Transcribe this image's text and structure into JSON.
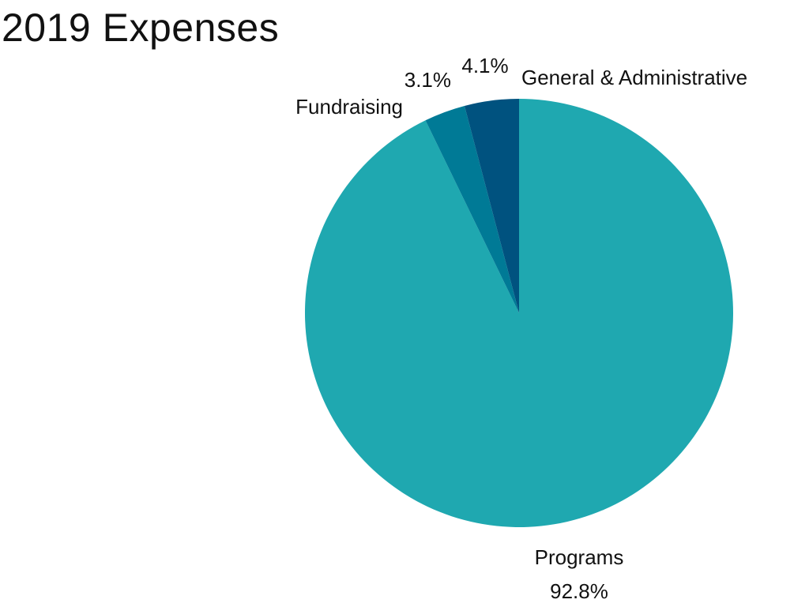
{
  "chart_data": {
    "type": "pie",
    "title": "2019 Expenses",
    "start_angle_deg": 0,
    "direction": "clockwise",
    "slices": [
      {
        "label": "Programs",
        "value": 92.8,
        "value_label": "92.8%",
        "color": "#1fa8b0"
      },
      {
        "label": "Fundraising",
        "value": 3.1,
        "value_label": "3.1%",
        "color": "#007a96"
      },
      {
        "label": "General & Administrative",
        "value": 4.1,
        "value_label": "4.1%",
        "color": "#00527f"
      }
    ],
    "legend": "none",
    "labels": "outside"
  }
}
